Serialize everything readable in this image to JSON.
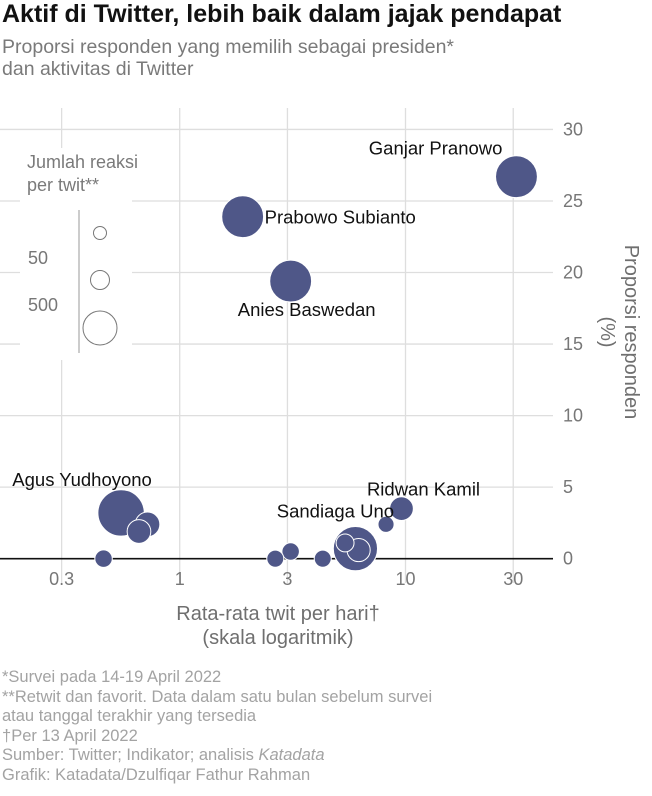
{
  "header": {
    "title": "Aktif di Twitter, lebih baik dalam jajak pendapat",
    "subtitle_line1": "Proporsi responden yang memilih sebagai presiden*",
    "subtitle_line2": "dan aktivitas di Twitter"
  },
  "chart_data": {
    "type": "scatter",
    "xlabel_line1": "Rata-rata twit per hari†",
    "xlabel_line2": "(skala logaritmik)",
    "ylabel_line1": "Proporsi responden",
    "ylabel_line2": "(%)",
    "x_scale": "log",
    "xlim": [
      0.16,
      45
    ],
    "ylim": [
      -1.7,
      31.5
    ],
    "x_ticks": [
      0.3,
      1,
      3,
      10,
      30
    ],
    "x_tick_labels": [
      "0.3",
      "1",
      "3",
      "10",
      "30"
    ],
    "y_ticks": [
      0,
      5,
      10,
      15,
      20,
      25,
      30
    ],
    "y_tick_labels": [
      "0",
      "5",
      "10",
      "15",
      "20",
      "25",
      "30"
    ],
    "grid": true,
    "y_axis_position": "right",
    "size_legend": {
      "title_line1": "Jumlah reaksi",
      "title_line2": "per twit**",
      "labels": [
        "50",
        "500"
      ]
    },
    "colors": {
      "point": "#4f5788",
      "point_stroke": "#ffffff",
      "zero_line": "#111111",
      "grid": "#dedede"
    },
    "points": [
      {
        "label": "Ganjar Pranowo",
        "x": 31,
        "y": 26.7,
        "reactions": 700
      },
      {
        "label": "Prabowo Subianto",
        "x": 1.9,
        "y": 23.9,
        "reactions": 700
      },
      {
        "label": "Anies Baswedan",
        "x": 3.1,
        "y": 19.4,
        "reactions": 700
      },
      {
        "label": "Agus Yudhoyono",
        "x": 0.55,
        "y": 3.2,
        "reactions": 900
      },
      {
        "label": "Ridwan Kamil",
        "x": 9.6,
        "y": 3.5,
        "reactions": 150
      },
      {
        "label": "Sandiaga Uno",
        "x": 6.0,
        "y": 0.7,
        "reactions": 800
      },
      {
        "label": "",
        "x": 0.72,
        "y": 2.4,
        "reactions": 170
      },
      {
        "label": "",
        "x": 0.66,
        "y": 1.9,
        "reactions": 150
      },
      {
        "label": "",
        "x": 0.46,
        "y": 0.0,
        "reactions": 55
      },
      {
        "label": "",
        "x": 3.1,
        "y": 0.5,
        "reactions": 55
      },
      {
        "label": "",
        "x": 2.65,
        "y": 0.0,
        "reactions": 50
      },
      {
        "label": "",
        "x": 4.3,
        "y": 0.0,
        "reactions": 50
      },
      {
        "label": "",
        "x": 8.2,
        "y": 2.4,
        "reactions": 40
      },
      {
        "label": "",
        "x": 5.4,
        "y": 1.1,
        "reactions": 60
      },
      {
        "label": "",
        "x": 6.2,
        "y": 0.6,
        "reactions": 140
      }
    ]
  },
  "notes": {
    "n1": "*Survei pada 14-19 April 2022",
    "n2": "**Retwit dan favorit. Data dalam satu bulan sebelum survei",
    "n3": "atau tanggal terakhir yang tersedia",
    "n4_mark": "†",
    "n4": "Per 13 April 2022",
    "n5_pre": "Sumber: Twitter; Indikator; analisis ",
    "n5_em": "Katadata",
    "n6": "Grafik: Katadata/Dzulfiqar Fathur Rahman"
  }
}
